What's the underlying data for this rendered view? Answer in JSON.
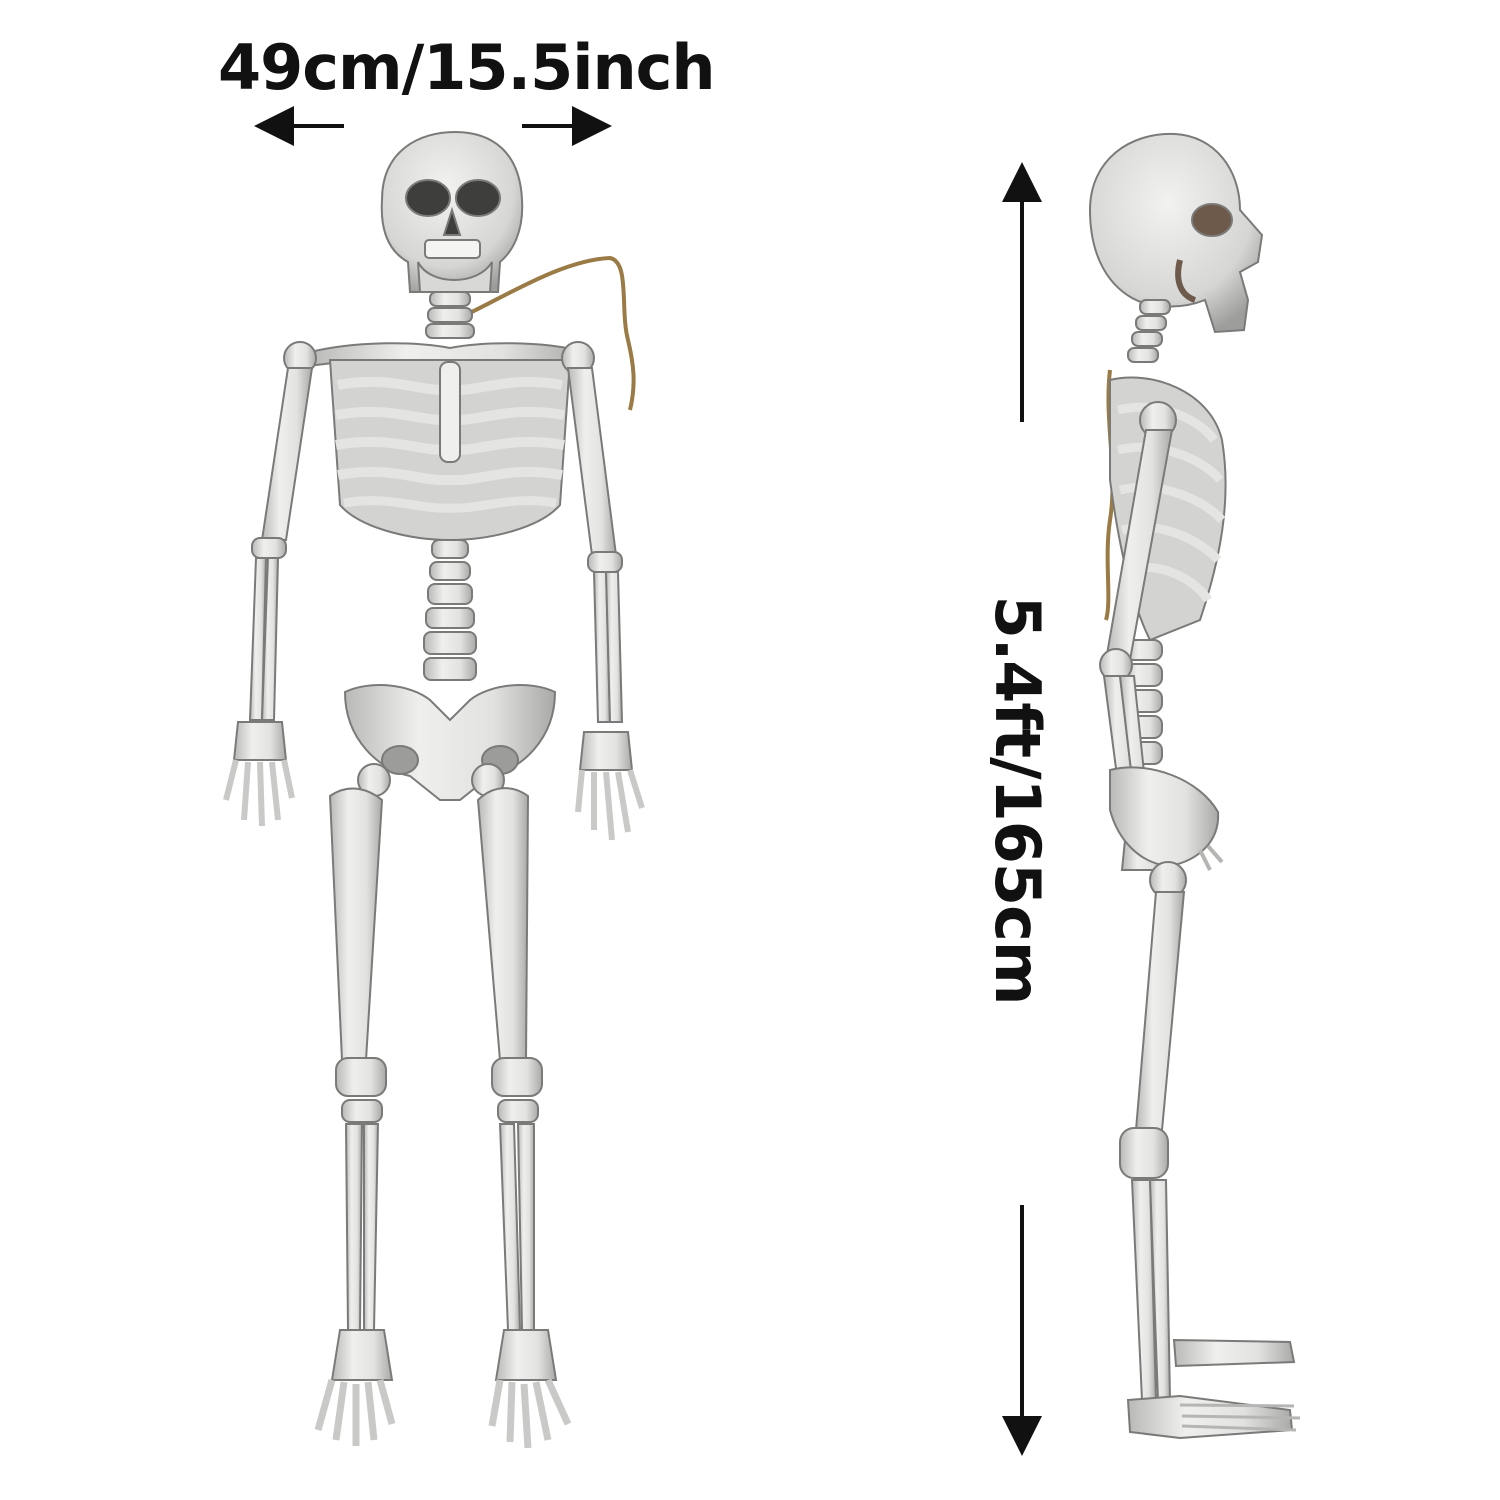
{
  "dimensions": {
    "width_text": "49cm/15.5inch",
    "height_text": "5.4ft/165cm"
  },
  "colors": {
    "bone": "#e6e6e4",
    "bone_shadow": "#a8a8a6",
    "bone_outline": "#7a7a78",
    "text": "#111111",
    "rope": "#9a7a45"
  },
  "figures": {
    "front_view": "skeleton-front",
    "side_view": "skeleton-side"
  }
}
